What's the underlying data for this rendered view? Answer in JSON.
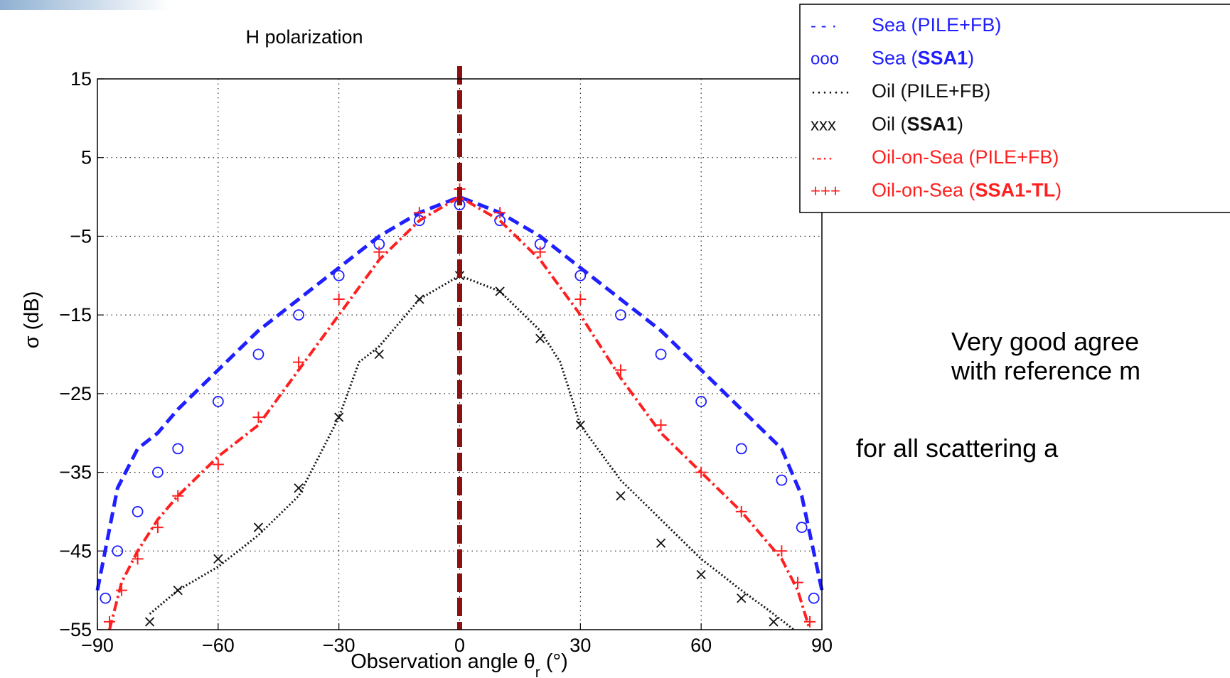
{
  "chart_data": {
    "type": "line",
    "title": "H polarization",
    "xlabel": "Observation angle θ",
    "xlabel_subscript": "r",
    "xlabel_suffix": "(°)",
    "ylabel": "σ (dB)",
    "xlim": [
      -90,
      90
    ],
    "ylim": [
      -55,
      15
    ],
    "xticks": [
      -90,
      -60,
      -30,
      0,
      30,
      60,
      90
    ],
    "yticks": [
      15,
      5,
      -5,
      -15,
      -25,
      -35,
      -45,
      -55
    ],
    "grid": true,
    "legend_position": "top-right",
    "annotations": [
      {
        "type": "vertical-line",
        "x": 0,
        "color": "#8b1010",
        "style": "dashed"
      }
    ],
    "series": [
      {
        "key": "sea_pile",
        "name": "Sea (PILE+FB)",
        "color": "#1f1fff",
        "style": "dashed",
        "x": [
          -90,
          -85,
          -80,
          -75,
          -70,
          -60,
          -50,
          -40,
          -30,
          -20,
          -10,
          0,
          10,
          20,
          30,
          40,
          50,
          60,
          70,
          80,
          85,
          90
        ],
        "y": [
          -50,
          -37,
          -32,
          -30,
          -27,
          -22,
          -17,
          -13,
          -9,
          -5,
          -2,
          0,
          -2,
          -5,
          -9,
          -13,
          -17,
          -22,
          -27,
          -32,
          -38,
          -50
        ]
      },
      {
        "key": "sea_ssa1",
        "name": "Sea (SSA1)",
        "color": "#1f1fff",
        "style": "circles",
        "x": [
          -88,
          -85,
          -80,
          -75,
          -70,
          -60,
          -50,
          -40,
          -30,
          -20,
          -10,
          0,
          10,
          20,
          30,
          40,
          50,
          60,
          70,
          80,
          85,
          88
        ],
        "y": [
          -51,
          -45,
          -40,
          -35,
          -32,
          -26,
          -20,
          -15,
          -10,
          -6,
          -3,
          -1,
          -3,
          -6,
          -10,
          -15,
          -20,
          -26,
          -32,
          -36,
          -42,
          -51
        ]
      },
      {
        "key": "oil_pile",
        "name": "Oil (PILE+FB)",
        "color": "#111111",
        "style": "dotted",
        "x": [
          -77,
          -70,
          -60,
          -50,
          -40,
          -30,
          -25,
          -20,
          -10,
          0,
          10,
          20,
          25,
          30,
          40,
          50,
          60,
          70,
          78,
          83
        ],
        "y": [
          -53,
          -50,
          -47,
          -43,
          -38,
          -28,
          -21,
          -19,
          -13,
          -10,
          -12,
          -17,
          -21,
          -29,
          -36,
          -41,
          -46,
          -50,
          -53,
          -55
        ]
      },
      {
        "key": "oil_ssa1",
        "name": "Oil (SSA1)",
        "color": "#111111",
        "style": "crosses",
        "x": [
          -77,
          -70,
          -60,
          -50,
          -40,
          -30,
          -20,
          -10,
          0,
          10,
          20,
          30,
          40,
          50,
          60,
          70,
          78
        ],
        "y": [
          -54,
          -50,
          -46,
          -42,
          -37,
          -28,
          -20,
          -13,
          -10,
          -12,
          -18,
          -29,
          -38,
          -44,
          -48,
          -51,
          -54
        ]
      },
      {
        "key": "oos_pile",
        "name": "Oil-on-Sea (PILE+FB)",
        "color": "#ff1f1f",
        "style": "dashdot",
        "x": [
          -87,
          -84,
          -80,
          -75,
          -70,
          -60,
          -50,
          -40,
          -30,
          -20,
          -10,
          0,
          10,
          20,
          30,
          40,
          50,
          60,
          70,
          80,
          84,
          87
        ],
        "y": [
          -55,
          -49,
          -45,
          -41,
          -38,
          -33,
          -29,
          -22,
          -15,
          -8,
          -3,
          0,
          -3,
          -8,
          -15,
          -23,
          -30,
          -35,
          -40,
          -46,
          -50,
          -55
        ]
      },
      {
        "key": "oos_ssa1tl",
        "name": "Oil-on-Sea (SSA1-TL)",
        "color": "#ff1f1f",
        "style": "pluses",
        "x": [
          -87,
          -84,
          -80,
          -75,
          -70,
          -60,
          -50,
          -40,
          -30,
          -20,
          -10,
          0,
          10,
          20,
          30,
          40,
          50,
          60,
          70,
          80,
          84,
          87
        ],
        "y": [
          -54,
          -50,
          -46,
          -42,
          -38,
          -34,
          -28,
          -21,
          -13,
          -7,
          -2,
          1,
          -2,
          -7,
          -13,
          -22,
          -29,
          -35,
          -40,
          -45,
          -49,
          -54
        ]
      }
    ]
  },
  "legend": {
    "items": [
      {
        "symbol": "- - ·",
        "color": "#1f1fff",
        "pre": "Sea (",
        "bold": "",
        "post": "PILE+FB)"
      },
      {
        "symbol": "ooo",
        "color": "#1f1fff",
        "pre": "Sea (",
        "bold": "SSA1",
        "post": ")"
      },
      {
        "symbol": "·······",
        "color": "#111111",
        "pre": "Oil (",
        "bold": "",
        "post": "PILE+FB)"
      },
      {
        "symbol": "xxx",
        "color": "#111111",
        "pre": "Oil (",
        "bold": "SSA1",
        "post": ")"
      },
      {
        "symbol": "·-··",
        "color": "#ff1f1f",
        "pre": "Oil-on-Sea (",
        "bold": "",
        "post": "PILE+FB)"
      },
      {
        "symbol": "+++",
        "color": "#ff1f1f",
        "pre": "Oil-on-Sea (",
        "bold": "SSA1-TL",
        "post": ")"
      }
    ]
  },
  "notes": {
    "line1": "Very good agree",
    "line2": "with reference m",
    "line3": "for all scattering a"
  }
}
